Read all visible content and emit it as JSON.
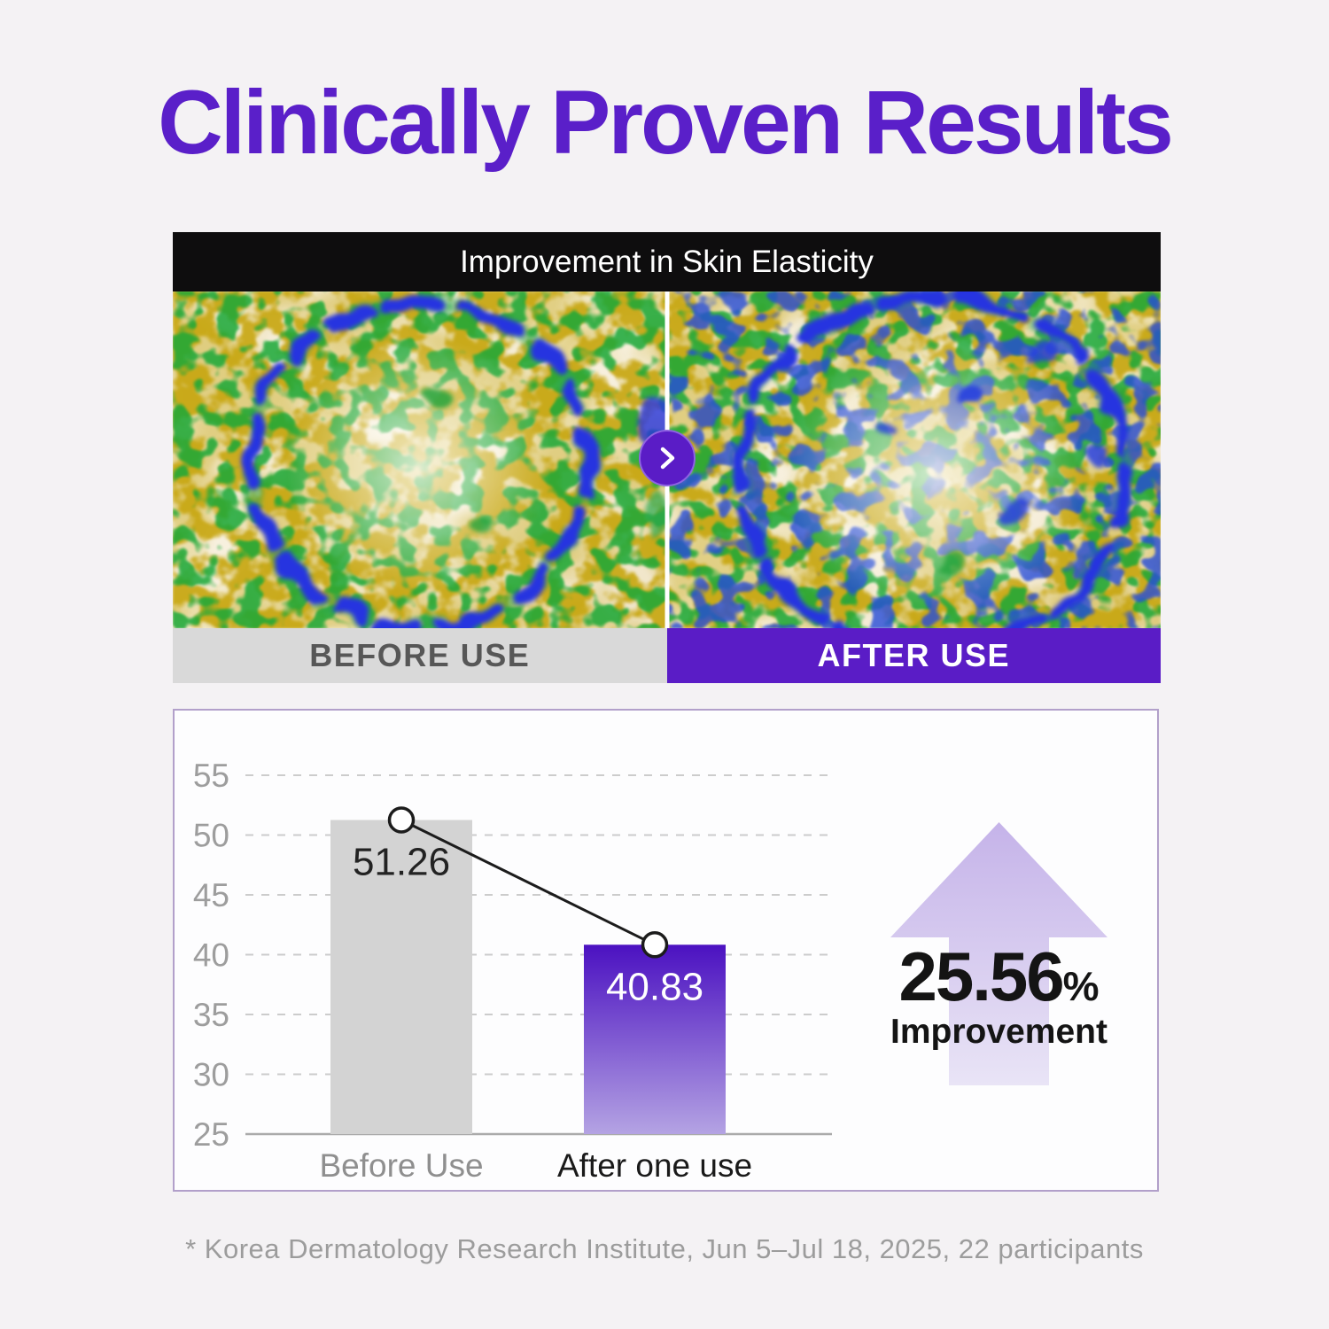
{
  "page": {
    "background": "#f4f2f4",
    "title_color": "#5a1fc9",
    "purple": "#5a1cc6"
  },
  "title": "Clinically Proven Results",
  "comparison": {
    "header": "Improvement in Skin Elasticity",
    "before_label": "BEFORE USE",
    "after_label": "AFTER USE",
    "arrow_icon": "chevron-right"
  },
  "chart_data": {
    "type": "bar",
    "title": "",
    "categories": [
      "Before Use",
      "After one use"
    ],
    "values": [
      51.26,
      40.83
    ],
    "value_labels": [
      "51.26",
      "40.83"
    ],
    "ylim": [
      25,
      55
    ],
    "yticks": [
      55,
      50,
      45,
      40,
      35,
      30,
      25
    ],
    "grid": "horizontal-dashed",
    "legend": "none",
    "connector_line": {
      "show": true,
      "marker": "circle"
    },
    "colors": {
      "before_bar": "#d3d3d3",
      "after_bar_top": "#4b11c1",
      "after_bar_bottom": "#b4a3e3",
      "gridline": "#cccccc",
      "baseline": "#aaaaaa",
      "tick_label": "#9d9d9d",
      "value_label_before": "#222222",
      "value_label_after": "#ffffff",
      "category_before": "#8f8f8f",
      "category_after": "#1a1a1a",
      "connector": "#1c1c1c"
    }
  },
  "improvement": {
    "value": "25.56",
    "percent_sign": "%",
    "label": "Improvement",
    "arrow_color_top": "#c5b3e9",
    "arrow_color_bottom": "#e9e4f6"
  },
  "footnote": "* Korea Dermatology Research Institute, Jun 5–Jul 18, 2025, 22 participants"
}
